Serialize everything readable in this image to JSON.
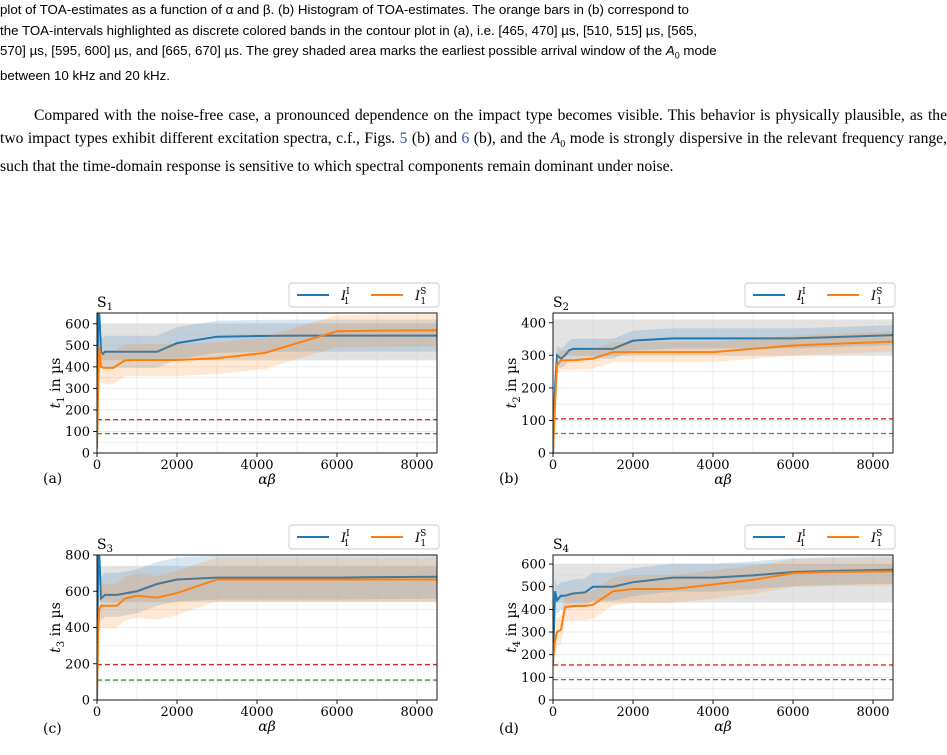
{
  "caption": {
    "line1": "plot of TOA-estimates as a function of α and β. (b) Histogram of TOA-estimates. The orange bars in (b) correspond to",
    "line2": "the TOA-intervals highlighted as discrete colored bands in the contour plot in (a), i.e. [465, 470] µs, [510, 515] µs, [565,",
    "line3": "570] µs, [595, 600] µs, and [665, 670] µs. The grey shaded area marks the earliest possible arrival window of the",
    "mode_sym": "A",
    "mode_sub": "0",
    "line3_tail": " mode",
    "line4": "between 10 kHz and 20 kHz."
  },
  "paragraph": {
    "text1": "Compared with the noise-free case, a pronounced dependence on the impact type becomes visible. This behavior is physically plausible, as the two impact types exhibit different excitation spectra, c.f., Figs. ",
    "fig5": "5",
    "text2": " (b) and ",
    "fig6": "6",
    "text3": " (b), and the ",
    "mode_sym": "A",
    "mode_sub": "0",
    "text4": " mode is strongly dispersive in the relevant frequency range, such that the time-domain response is sensitive to which spectral components remain dominant under noise."
  },
  "colors": {
    "series1": "#1f77b4",
    "series2": "#ff7f0e",
    "red": "#d62728",
    "green": "#2ca02c",
    "band": "#d9d9d9"
  },
  "legend": {
    "s1": "I",
    "s1_sub": "1",
    "s1_sup": "I",
    "s2": "I",
    "s2_sub": "1",
    "s2_sup": "S"
  },
  "chart_data": [
    {
      "type": "line",
      "panel": "(a)",
      "sensor": "S",
      "sensor_sub": "1",
      "ylabel_main": "t",
      "ylabel_sub": "1",
      "ylabel_unit": " in µs",
      "xlabel": "αβ",
      "xlim": [
        0,
        8500
      ],
      "ylim": [
        0,
        650
      ],
      "xticks": [
        0,
        2000,
        4000,
        6000,
        8000
      ],
      "yticks": [
        0,
        100,
        200,
        300,
        400,
        500,
        600
      ],
      "band": [
        430,
        600
      ],
      "red_line": 155,
      "green_line": 90,
      "series": [
        {
          "x": [
            0,
            30,
            60,
            100,
            150,
            200,
            300,
            1000,
            1500,
            2000,
            3000,
            4000,
            5000,
            6000,
            7000,
            8500
          ],
          "y": [
            120,
            650,
            640,
            470,
            460,
            470,
            470,
            470,
            470,
            510,
            540,
            543,
            545,
            545,
            545,
            545
          ]
        },
        {
          "x": [
            0,
            30,
            60,
            100,
            200,
            400,
            700,
            1000,
            1500,
            2000,
            3000,
            4200,
            5000,
            6000,
            7000,
            8500
          ],
          "y": [
            20,
            300,
            490,
            400,
            395,
            395,
            430,
            432,
            432,
            432,
            440,
            465,
            510,
            565,
            568,
            570
          ]
        }
      ]
    },
    {
      "type": "line",
      "panel": "(b)",
      "sensor": "S",
      "sensor_sub": "2",
      "ylabel_main": "t",
      "ylabel_sub": "2",
      "ylabel_unit": " in µs",
      "xlabel": "αβ",
      "xlim": [
        0,
        8500
      ],
      "ylim": [
        0,
        430
      ],
      "xticks": [
        0,
        2000,
        4000,
        6000,
        8000
      ],
      "yticks": [
        0,
        100,
        200,
        300,
        400
      ],
      "band": [
        300,
        410
      ],
      "red_line": 105,
      "green_line": 60,
      "series": [
        {
          "x": [
            0,
            50,
            100,
            200,
            300,
            400,
            500,
            1000,
            1500,
            2000,
            3000,
            4000,
            5000,
            6000,
            7000,
            8500
          ],
          "y": [
            0,
            200,
            300,
            290,
            300,
            315,
            320,
            320,
            320,
            345,
            352,
            352,
            352,
            352,
            356,
            362
          ]
        },
        {
          "x": [
            0,
            50,
            100,
            200,
            300,
            500,
            1000,
            1500,
            2000,
            3000,
            4000,
            5000,
            6000,
            7000,
            8500
          ],
          "y": [
            0,
            150,
            270,
            285,
            285,
            285,
            290,
            310,
            310,
            310,
            310,
            320,
            330,
            335,
            342
          ]
        }
      ]
    },
    {
      "type": "line",
      "panel": "(c)",
      "sensor": "S",
      "sensor_sub": "3",
      "ylabel_main": "t",
      "ylabel_sub": "3",
      "ylabel_unit": " in µs",
      "xlabel": "αβ",
      "xlim": [
        0,
        8500
      ],
      "ylim": [
        0,
        800
      ],
      "xticks": [
        0,
        2000,
        4000,
        6000,
        8000
      ],
      "yticks": [
        0,
        200,
        400,
        600,
        800
      ],
      "band": [
        540,
        740
      ],
      "red_line": 195,
      "green_line": 110,
      "series": [
        {
          "x": [
            0,
            30,
            60,
            100,
            200,
            500,
            1000,
            1500,
            2000,
            3000,
            4000,
            5000,
            6000,
            7000,
            8500
          ],
          "y": [
            0,
            800,
            790,
            560,
            580,
            580,
            600,
            640,
            665,
            675,
            675,
            675,
            675,
            678,
            680
          ]
        },
        {
          "x": [
            0,
            30,
            60,
            100,
            200,
            500,
            700,
            1000,
            1500,
            2000,
            3000,
            4000,
            5000,
            6000,
            7000,
            8500
          ],
          "y": [
            0,
            400,
            500,
            520,
            520,
            520,
            560,
            575,
            565,
            590,
            665,
            665,
            665,
            665,
            665,
            665
          ]
        }
      ]
    },
    {
      "type": "line",
      "panel": "(d)",
      "sensor": "S",
      "sensor_sub": "4",
      "ylabel_main": "t",
      "ylabel_sub": "4",
      "ylabel_unit": " in µs",
      "xlabel": "αβ",
      "xlim": [
        0,
        8500
      ],
      "ylim": [
        0,
        640
      ],
      "xticks": [
        0,
        2000,
        4000,
        6000,
        8000
      ],
      "yticks": [
        0,
        100,
        200,
        300,
        400,
        500,
        600
      ],
      "band": [
        430,
        600
      ],
      "red_line": 155,
      "green_line": 90,
      "series": [
        {
          "x": [
            0,
            50,
            100,
            200,
            300,
            500,
            800,
            1000,
            1500,
            2000,
            3000,
            4000,
            5000,
            6000,
            7000,
            8500
          ],
          "y": [
            160,
            480,
            440,
            460,
            460,
            470,
            475,
            500,
            500,
            520,
            540,
            540,
            550,
            565,
            570,
            575
          ]
        },
        {
          "x": [
            0,
            50,
            100,
            200,
            300,
            500,
            800,
            1000,
            1500,
            2000,
            3000,
            4000,
            5000,
            6000,
            7000,
            8500
          ],
          "y": [
            180,
            260,
            300,
            310,
            410,
            415,
            415,
            420,
            480,
            490,
            490,
            510,
            530,
            560,
            565,
            568
          ]
        }
      ]
    }
  ]
}
